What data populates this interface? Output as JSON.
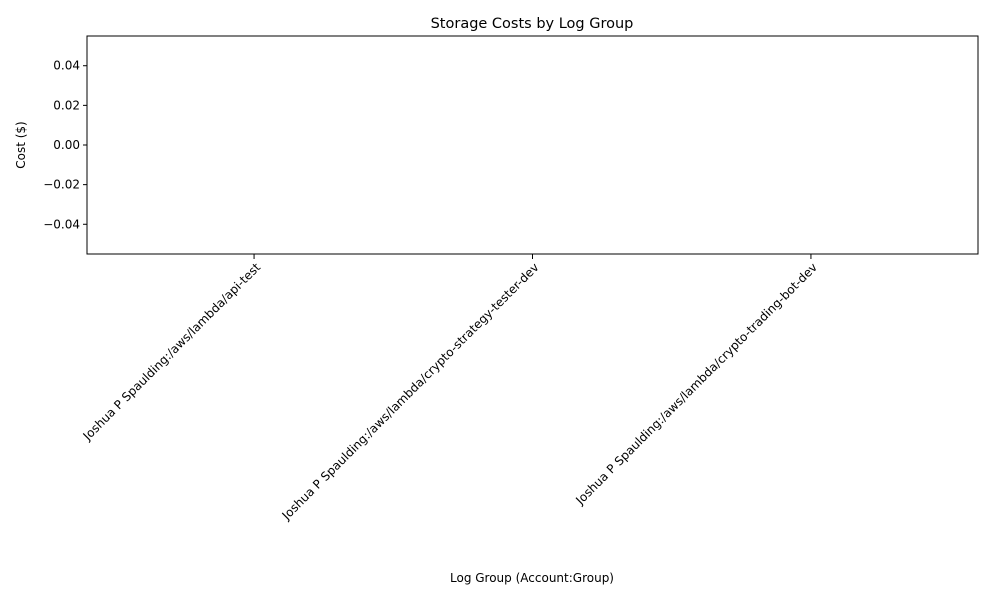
{
  "chart_data": {
    "type": "bar",
    "title": "Storage Costs by Log Group",
    "xlabel": "Log Group (Account:Group)",
    "ylabel": "Cost ($)",
    "categories": [
      "Joshua P Spaulding:/aws/lambda/api-test",
      "Joshua P Spaulding:/aws/lambda/crypto-strategy-tester-dev",
      "Joshua P Spaulding:/aws/lambda/crypto-trading-bot-dev"
    ],
    "values": [
      0,
      0,
      0
    ],
    "ylim": [
      -0.055,
      0.055
    ],
    "yticks": [
      -0.04,
      -0.02,
      0.0,
      0.02,
      0.04
    ],
    "ytick_labels": [
      "−0.04",
      "−0.02",
      "0.00",
      "0.02",
      "0.04"
    ],
    "grid": false,
    "bar_color": "#1f77b4"
  }
}
